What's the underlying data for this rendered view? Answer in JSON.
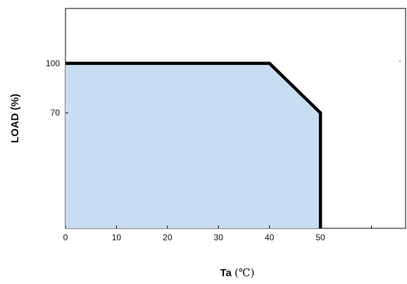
{
  "chart_data": {
    "type": "area",
    "title": "",
    "xlabel": "Ta",
    "xlabel_unit": "(℃)",
    "ylabel": "LOAD (%)",
    "xlim": [
      0,
      66.7
    ],
    "ylim": [
      0,
      133.3
    ],
    "x_ticks": [
      0,
      10,
      20,
      30,
      40,
      50,
      60
    ],
    "x_tick_labels": [
      "0",
      "10",
      "20",
      "30",
      "40",
      "50"
    ],
    "y_ticks": [
      70,
      100
    ],
    "y_tick_labels": [
      "70",
      "100"
    ],
    "series": [
      {
        "x": [
          0,
          40,
          50,
          50
        ],
        "y": [
          100,
          100,
          70,
          0
        ]
      }
    ],
    "fill_color": "#c8ddf1",
    "line_color": "#000000",
    "grid": false,
    "legend": "none"
  }
}
